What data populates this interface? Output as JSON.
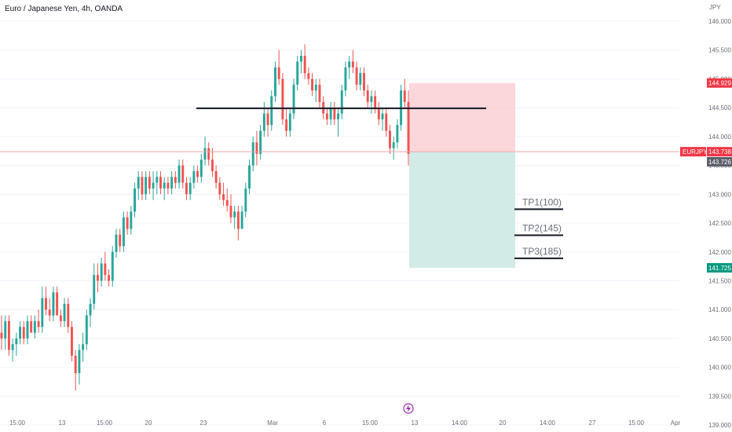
{
  "header": {
    "symbol_title": "Euro / Japanese Yen, 4h, OANDA",
    "currency": "JPY"
  },
  "colors": {
    "bull": "#26a69a",
    "bear": "#ef5350",
    "stop_zone": "#f9c9cf",
    "target_zone": "#cde9e3",
    "price_line": "#f0a5a9",
    "grid": "#f0f3fa",
    "tag_red": "#f23645",
    "tag_gray": "#5d606b",
    "tag_green": "#089981",
    "event_icon": "#9c27b0"
  },
  "icons": {
    "event_marker": "lightning-icon"
  },
  "chart_data": {
    "type": "candlestick",
    "instrument": "EURJPY",
    "timeframe": "4h",
    "ylim": [
      138.96,
      146.15
    ],
    "y_ticks": [
      "139.000",
      "139.500",
      "140.000",
      "140.500",
      "141.000",
      "141.500",
      "142.000",
      "142.500",
      "143.000",
      "143.500",
      "144.000",
      "144.500",
      "145.000",
      "145.500",
      "146.000"
    ],
    "x_ticks": [
      "15:00",
      "13",
      "15:00",
      "20",
      "23",
      "Mar",
      "6",
      "15:00",
      "13",
      "14:00",
      "20",
      "14:00",
      "27",
      "15:00",
      "Apr"
    ],
    "price_tags": [
      {
        "label": "",
        "value": "144.929",
        "y": 144.929,
        "style": "red"
      },
      {
        "label": "EURJPY",
        "value": "143.738",
        "y": 143.738,
        "style": "red"
      },
      {
        "label": "",
        "value": "143.726",
        "y": 143.726,
        "style": "gray"
      },
      {
        "label": "",
        "value": "141.725",
        "y": 141.725,
        "style": "green"
      }
    ],
    "resistance_level": 144.49,
    "position": {
      "side": "short",
      "entry": 143.738,
      "stop": 144.929,
      "target": 141.725
    },
    "take_profits": [
      {
        "label": "TP1(100)",
        "y": 142.74
      },
      {
        "label": "TP2(145)",
        "y": 142.29
      },
      {
        "label": "TP3(185)",
        "y": 141.89
      }
    ],
    "candles": [
      [
        140.6,
        140.9,
        140.3,
        140.5
      ],
      [
        140.5,
        140.9,
        140.3,
        140.8
      ],
      [
        140.8,
        140.9,
        140.2,
        140.3
      ],
      [
        140.3,
        140.5,
        140.1,
        140.4
      ],
      [
        140.4,
        140.6,
        140.2,
        140.5
      ],
      [
        140.5,
        140.8,
        140.4,
        140.7
      ],
      [
        140.7,
        140.8,
        140.4,
        140.5
      ],
      [
        140.5,
        140.9,
        140.4,
        140.8
      ],
      [
        140.8,
        140.9,
        140.6,
        140.6
      ],
      [
        140.6,
        140.9,
        140.5,
        140.8
      ],
      [
        140.8,
        141.0,
        140.6,
        140.7
      ],
      [
        140.7,
        141.4,
        140.6,
        141.2
      ],
      [
        141.2,
        141.4,
        140.9,
        141.0
      ],
      [
        141.0,
        141.2,
        140.8,
        140.9
      ],
      [
        140.9,
        141.4,
        140.8,
        141.3
      ],
      [
        141.3,
        141.4,
        140.9,
        140.9
      ],
      [
        140.9,
        141.0,
        140.7,
        140.8
      ],
      [
        140.8,
        141.2,
        140.7,
        141.1
      ],
      [
        141.1,
        141.2,
        140.6,
        140.7
      ],
      [
        140.7,
        140.8,
        140.1,
        140.2
      ],
      [
        140.2,
        140.3,
        139.6,
        139.9
      ],
      [
        139.9,
        140.4,
        139.7,
        140.3
      ],
      [
        140.3,
        140.6,
        140.1,
        140.4
      ],
      [
        140.4,
        141.0,
        140.3,
        140.9
      ],
      [
        140.9,
        141.2,
        140.7,
        141.1
      ],
      [
        141.1,
        141.8,
        141.0,
        141.6
      ],
      [
        141.6,
        141.8,
        141.3,
        141.5
      ],
      [
        141.5,
        141.9,
        141.4,
        141.8
      ],
      [
        141.8,
        142.0,
        141.5,
        141.6
      ],
      [
        141.6,
        141.7,
        141.4,
        141.5
      ],
      [
        141.5,
        142.1,
        141.4,
        142.0
      ],
      [
        142.0,
        142.4,
        141.9,
        142.3
      ],
      [
        142.3,
        142.4,
        142.0,
        142.1
      ],
      [
        142.1,
        142.7,
        142.0,
        142.6
      ],
      [
        142.6,
        142.7,
        142.3,
        142.4
      ],
      [
        142.4,
        142.8,
        142.3,
        142.7
      ],
      [
        142.7,
        143.2,
        142.6,
        143.1
      ],
      [
        143.1,
        143.4,
        142.9,
        143.3
      ],
      [
        143.3,
        143.4,
        142.9,
        143.0
      ],
      [
        143.0,
        143.4,
        142.9,
        143.3
      ],
      [
        143.3,
        143.4,
        143.0,
        143.1
      ],
      [
        143.1,
        143.4,
        142.9,
        143.2
      ],
      [
        143.2,
        143.4,
        143.0,
        143.3
      ],
      [
        143.3,
        143.4,
        143.0,
        143.1
      ],
      [
        143.1,
        143.3,
        142.9,
        143.2
      ],
      [
        143.2,
        143.3,
        143.0,
        143.1
      ],
      [
        143.1,
        143.4,
        143.0,
        143.3
      ],
      [
        143.3,
        143.4,
        143.1,
        143.2
      ],
      [
        143.2,
        143.6,
        143.1,
        143.5
      ],
      [
        143.5,
        143.6,
        143.1,
        143.2
      ],
      [
        143.2,
        143.3,
        142.9,
        143.0
      ],
      [
        143.0,
        143.3,
        142.9,
        143.2
      ],
      [
        143.2,
        143.5,
        143.1,
        143.4
      ],
      [
        143.4,
        143.5,
        143.2,
        143.3
      ],
      [
        143.3,
        143.7,
        143.2,
        143.6
      ],
      [
        143.6,
        144.0,
        143.5,
        143.8
      ],
      [
        143.8,
        143.9,
        143.5,
        143.6
      ],
      [
        143.6,
        143.8,
        143.3,
        143.4
      ],
      [
        143.4,
        143.5,
        143.1,
        143.2
      ],
      [
        143.2,
        143.3,
        142.9,
        143.0
      ],
      [
        143.0,
        143.2,
        142.8,
        142.9
      ],
      [
        142.9,
        143.1,
        142.7,
        142.8
      ],
      [
        142.8,
        143.0,
        142.5,
        142.6
      ],
      [
        142.6,
        142.8,
        142.4,
        142.7
      ],
      [
        142.7,
        142.8,
        142.2,
        142.4
      ],
      [
        142.4,
        142.8,
        142.4,
        142.7
      ],
      [
        142.7,
        143.2,
        142.6,
        143.1
      ],
      [
        143.1,
        143.6,
        143.0,
        143.5
      ],
      [
        143.5,
        144.0,
        143.4,
        143.9
      ],
      [
        143.9,
        144.1,
        143.5,
        143.7
      ],
      [
        143.7,
        144.2,
        143.6,
        144.1
      ],
      [
        144.1,
        144.6,
        144.0,
        144.4
      ],
      [
        144.4,
        144.5,
        144.0,
        144.2
      ],
      [
        144.2,
        144.8,
        144.1,
        144.7
      ],
      [
        144.7,
        145.3,
        144.6,
        145.2
      ],
      [
        145.2,
        145.5,
        144.9,
        145.0
      ],
      [
        145.0,
        145.1,
        144.2,
        144.3
      ],
      [
        144.3,
        144.5,
        144.0,
        144.1
      ],
      [
        144.1,
        144.5,
        144.0,
        144.4
      ],
      [
        144.4,
        145.0,
        144.3,
        144.9
      ],
      [
        144.9,
        145.4,
        144.8,
        145.3
      ],
      [
        145.3,
        145.5,
        145.1,
        145.4
      ],
      [
        145.4,
        145.6,
        145.0,
        145.1
      ],
      [
        145.1,
        145.2,
        144.9,
        145.0
      ],
      [
        145.0,
        145.1,
        144.7,
        144.8
      ],
      [
        144.8,
        145.0,
        144.6,
        144.9
      ],
      [
        144.9,
        145.0,
        144.5,
        144.6
      ],
      [
        144.6,
        144.7,
        144.3,
        144.4
      ],
      [
        144.4,
        144.5,
        144.2,
        144.3
      ],
      [
        144.3,
        144.6,
        144.2,
        144.5
      ],
      [
        144.5,
        144.6,
        144.2,
        144.3
      ],
      [
        144.3,
        144.5,
        144.0,
        144.4
      ],
      [
        144.4,
        144.9,
        144.3,
        144.8
      ],
      [
        144.8,
        145.3,
        144.7,
        145.2
      ],
      [
        145.2,
        145.4,
        145.0,
        145.3
      ],
      [
        145.3,
        145.5,
        145.1,
        145.2
      ],
      [
        145.2,
        145.3,
        144.8,
        144.9
      ],
      [
        144.9,
        145.2,
        144.8,
        145.1
      ],
      [
        145.1,
        145.2,
        144.7,
        144.8
      ],
      [
        144.8,
        144.9,
        144.5,
        144.6
      ],
      [
        144.6,
        144.8,
        144.4,
        144.7
      ],
      [
        144.7,
        144.8,
        144.4,
        144.5
      ],
      [
        144.5,
        144.6,
        144.2,
        144.3
      ],
      [
        144.3,
        144.5,
        144.1,
        144.4
      ],
      [
        144.4,
        144.5,
        144.0,
        144.1
      ],
      [
        144.1,
        144.2,
        143.7,
        143.8
      ],
      [
        143.8,
        144.0,
        143.6,
        143.9
      ],
      [
        143.9,
        144.3,
        143.8,
        144.2
      ],
      [
        144.2,
        144.9,
        144.1,
        144.8
      ],
      [
        144.8,
        145.0,
        144.5,
        144.6
      ],
      [
        144.6,
        144.8,
        143.5,
        143.7
      ]
    ]
  }
}
